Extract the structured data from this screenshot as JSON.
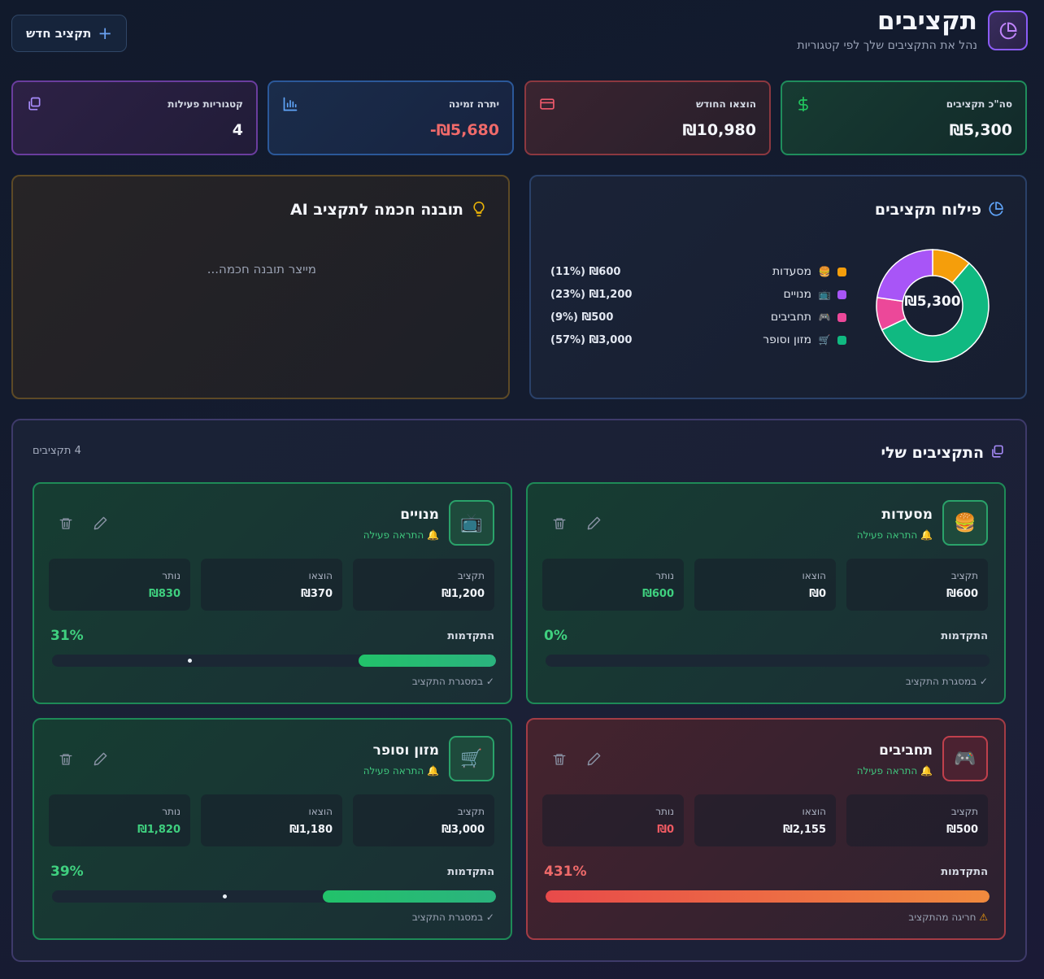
{
  "header": {
    "title": "תקציבים",
    "subtitle": "נהל את התקציבים שלך לפי קטגוריות",
    "new_button": "תקציב חדש"
  },
  "stats": [
    {
      "label": "סה\"כ תקציבים",
      "value": "₪5,300",
      "icon": "dollar-icon",
      "color": "#22c55e"
    },
    {
      "label": "הוצאו החודש",
      "value": "₪10,980",
      "icon": "credit-card-icon",
      "color": "#f0596b"
    },
    {
      "label": "יתרה זמינה",
      "value": "-₪5,680",
      "icon": "bar-chart-icon",
      "color": "#60a5fa",
      "value_color": "#f06a6a"
    },
    {
      "label": "קטגוריות פעילות",
      "value": "4",
      "icon": "layers-icon",
      "color": "#a78bfa"
    }
  ],
  "ai_panel": {
    "title": "תובנה חכמה לתקציב AI",
    "status": "מייצר תובנה חכמה...",
    "icon": "lightbulb-icon"
  },
  "distribution": {
    "title": "פילוח תקציבים",
    "icon": "pie-chart-icon",
    "center_total": "₪5,300",
    "legend": [
      {
        "name": "מסעדות",
        "emoji": "🍔",
        "amount": "₪600",
        "pct": "(11%)",
        "value": 600,
        "color": "#f59e0b"
      },
      {
        "name": "מנויים",
        "emoji": "📺",
        "amount": "₪1,200",
        "pct": "(23%)",
        "value": 1200,
        "color": "#a855f7"
      },
      {
        "name": "תחביבים",
        "emoji": "🎮",
        "amount": "₪500",
        "pct": "(9%)",
        "value": 500,
        "color": "#ec4899"
      },
      {
        "name": "מזון וסופר",
        "emoji": "🛒",
        "amount": "₪3,000",
        "pct": "(57%)",
        "value": 3000,
        "color": "#10b981"
      }
    ]
  },
  "budgets": {
    "title": "התקציבים שלי",
    "count": "4 תקציבים",
    "labels": {
      "budget": "תקציב",
      "spent": "הוצאו",
      "remaining": "נותר",
      "progress": "התקדמות",
      "alert": "התראה פעילה"
    },
    "cards": [
      {
        "name": "מסעדות",
        "emoji": "🍔",
        "budget": "₪600",
        "spent": "₪0",
        "remaining": "₪600",
        "percent": "0%",
        "progress": 0,
        "status": "✓ במסגרת התקציב",
        "over": false
      },
      {
        "name": "מנויים",
        "emoji": "📺",
        "budget": "₪1,200",
        "spent": "₪370",
        "remaining": "₪830",
        "percent": "31%",
        "progress": 0.31,
        "status": "✓ במסגרת התקציב",
        "over": false
      },
      {
        "name": "תחביבים",
        "emoji": "🎮",
        "budget": "₪500",
        "spent": "₪2,155",
        "remaining": "₪0",
        "percent": "431%",
        "progress": 1,
        "status": "חריגה מהתקציב",
        "over": true
      },
      {
        "name": "מזון וסופר",
        "emoji": "🛒",
        "budget": "₪3,000",
        "spent": "₪1,180",
        "remaining": "₪1,820",
        "percent": "39%",
        "progress": 0.39,
        "status": "✓ במסגרת התקציב",
        "over": false
      }
    ]
  }
}
